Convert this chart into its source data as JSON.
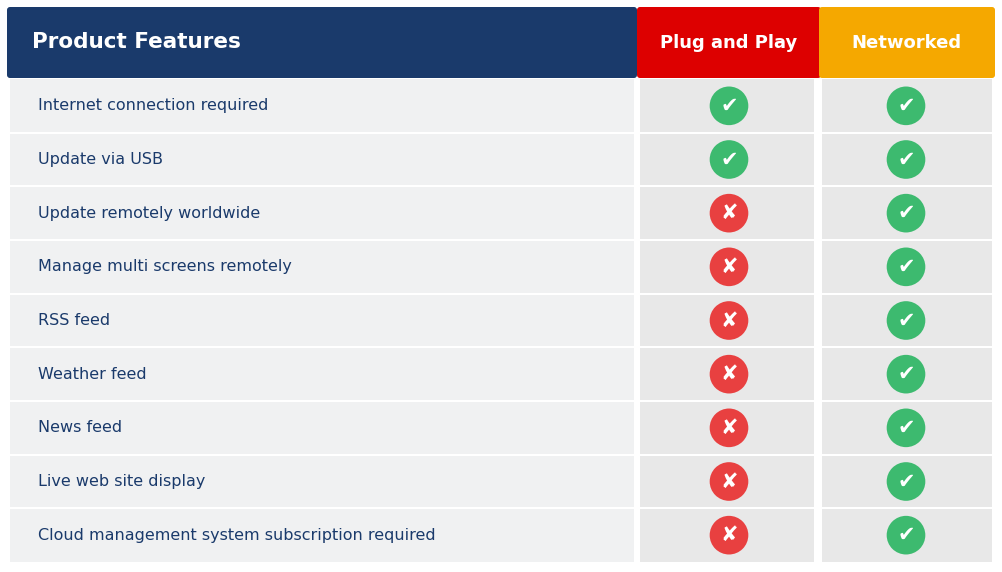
{
  "header_col": "Product Features",
  "header_col2": "Plug and Play",
  "header_col3": "Networked",
  "header_bg": "#1a3a6b",
  "header_col2_bg": "#dd0000",
  "header_col3_bg": "#f5a800",
  "header_text_color": "#ffffff",
  "row_bg_light": "#f0f1f2",
  "row_bg_white": "#ffffff",
  "col23_bg": "#e8e8e8",
  "divider_color": "#ffffff",
  "feature_text_color": "#1a3a6b",
  "features": [
    "Internet connection required",
    "Update via USB",
    "Update remotely worldwide",
    "Manage multi screens remotely",
    "RSS feed",
    "Weather feed",
    "News feed",
    "Live web site display",
    "Cloud management system subscription required"
  ],
  "plug_and_play": [
    true,
    true,
    false,
    false,
    false,
    false,
    false,
    false,
    false
  ],
  "networked": [
    true,
    true,
    true,
    true,
    true,
    true,
    true,
    true,
    true
  ],
  "check_color": "#3dba6f",
  "cross_color": "#e84040",
  "fig_width": 10.02,
  "fig_height": 5.72,
  "dpi": 100
}
